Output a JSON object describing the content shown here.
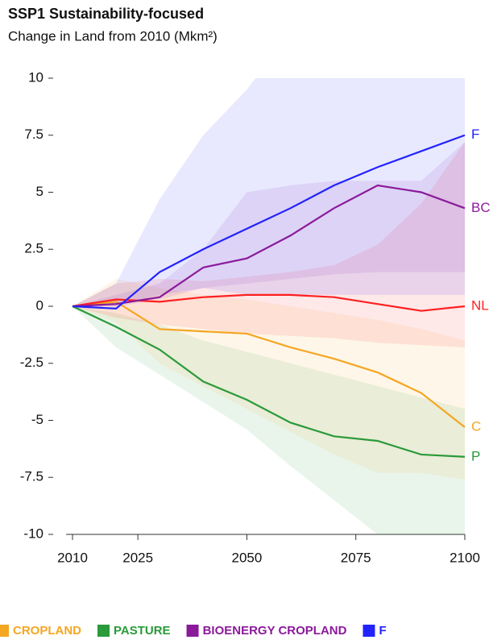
{
  "chart_data": {
    "type": "line",
    "title": "SSP1 Sustainability-focused",
    "subtitle": "Change in Land from 2010 (Mkm²)",
    "x": [
      2010,
      2020,
      2030,
      2040,
      2050,
      2060,
      2070,
      2080,
      2090,
      2100
    ],
    "xlim": [
      2010,
      2100
    ],
    "xticks": [
      2010,
      2025,
      2050,
      2075,
      2100
    ],
    "ylim": [
      -10,
      10
    ],
    "yticks": [
      10,
      7.5,
      5,
      2.5,
      0,
      -2.5,
      -5,
      -7.5,
      -10
    ],
    "series": [
      {
        "name": "CROPLAND",
        "label": "C",
        "color": "#f5a623",
        "values": [
          0,
          0.2,
          -1.0,
          -1.1,
          -1.2,
          -1.8,
          -2.3,
          -2.9,
          -3.8,
          -5.3
        ],
        "lower": [
          0,
          -0.7,
          -2.5,
          -3.5,
          -4.5,
          -5.5,
          -6.5,
          -7.3,
          -7.3,
          -7.6
        ],
        "upper": [
          0,
          1.2,
          0.8,
          0.5,
          0.3,
          0,
          -0.3,
          -0.6,
          -1,
          -1.5
        ]
      },
      {
        "name": "PASTURE",
        "label": "P",
        "color": "#2a9a3a",
        "values": [
          0,
          -0.9,
          -1.9,
          -3.3,
          -4.1,
          -5.1,
          -5.7,
          -5.9,
          -6.5,
          -6.6
        ],
        "lower": [
          0,
          -1.8,
          -3,
          -4.2,
          -5.4,
          -7,
          -8.5,
          -10,
          -11,
          -12
        ],
        "upper": [
          0,
          -0.3,
          -0.8,
          -1.5,
          -2,
          -2.5,
          -3,
          -3.5,
          -4,
          -4.5
        ]
      },
      {
        "name": "BIOENERGY CROPLAND",
        "label": "BC",
        "color": "#8b1a9b",
        "values": [
          0,
          0.1,
          0.4,
          1.7,
          2.1,
          3.1,
          4.3,
          5.3,
          5.0,
          4.3
        ],
        "lower": [
          0,
          0,
          0.3,
          0.8,
          1,
          1.2,
          1.4,
          1.5,
          1.5,
          1.5
        ],
        "upper": [
          0,
          0.5,
          1,
          2.5,
          5,
          5.3,
          5.5,
          5.5,
          5.5,
          7.2
        ]
      },
      {
        "name": "F",
        "label": "F",
        "color": "#2222ff",
        "values": [
          0,
          -0.1,
          1.5,
          2.5,
          3.4,
          4.3,
          5.3,
          6.1,
          6.8,
          7.5
        ],
        "lower": [
          0,
          0,
          0.5,
          0.8,
          0.5,
          0.5,
          0.5,
          0.5,
          0.5,
          0.5
        ],
        "upper": [
          0,
          1,
          4.7,
          7.5,
          9.5,
          12,
          14,
          16,
          18,
          20
        ]
      },
      {
        "label": "NL",
        "color": "#ff2020",
        "values": [
          0,
          0.3,
          0.2,
          0.4,
          0.5,
          0.5,
          0.4,
          0.1,
          -0.2,
          0
        ],
        "lower": [
          0,
          -0.5,
          -0.8,
          -1,
          -1.2,
          -1.3,
          -1.4,
          -1.6,
          -1.7,
          -1.8
        ],
        "upper": [
          0,
          1,
          1.2,
          1.1,
          1.3,
          1.5,
          1.8,
          2.7,
          4.5,
          7.2
        ]
      }
    ]
  }
}
